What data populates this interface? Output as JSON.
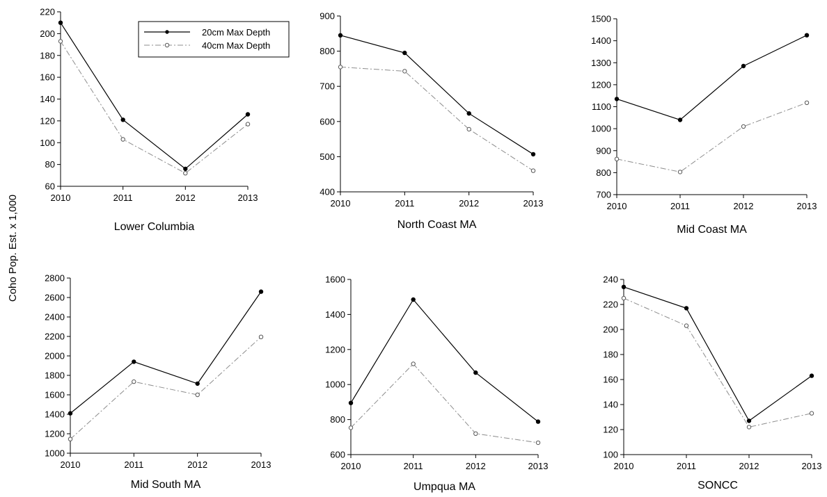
{
  "figure": {
    "ylabel": "Coho Pop. Est. x 1,000"
  },
  "legend": {
    "entries": [
      "20cm Max Depth",
      "40cm Max Depth"
    ]
  },
  "chart_data": [
    {
      "type": "line",
      "title": "Lower Columbia",
      "x": [
        2010,
        2011,
        2012,
        2013
      ],
      "ylim": [
        60,
        220
      ],
      "yticks": [
        60,
        80,
        100,
        120,
        140,
        160,
        180,
        200,
        220
      ],
      "series": [
        {
          "name": "20cm Max Depth",
          "values": [
            210,
            121,
            76,
            126
          ]
        },
        {
          "name": "40cm Max Depth",
          "values": [
            193,
            103,
            72,
            117
          ]
        }
      ]
    },
    {
      "type": "line",
      "title": "North Coast MA",
      "x": [
        2010,
        2011,
        2012,
        2013
      ],
      "ylim": [
        400,
        900
      ],
      "yticks": [
        400,
        500,
        600,
        700,
        800,
        900
      ],
      "series": [
        {
          "name": "20cm Max Depth",
          "values": [
            845,
            795,
            623,
            507
          ]
        },
        {
          "name": "40cm Max Depth",
          "values": [
            755,
            743,
            578,
            460
          ]
        }
      ]
    },
    {
      "type": "line",
      "title": "Mid Coast MA",
      "x": [
        2010,
        2011,
        2012,
        2013
      ],
      "ylim": [
        700,
        1500
      ],
      "yticks": [
        700,
        800,
        900,
        1000,
        1100,
        1200,
        1300,
        1400,
        1500
      ],
      "series": [
        {
          "name": "20cm Max Depth",
          "values": [
            1135,
            1040,
            1285,
            1425
          ]
        },
        {
          "name": "40cm Max Depth",
          "values": [
            862,
            803,
            1010,
            1118
          ]
        }
      ]
    },
    {
      "type": "line",
      "title": "Mid South MA",
      "x": [
        2010,
        2011,
        2012,
        2013
      ],
      "ylim": [
        1000,
        2800
      ],
      "yticks": [
        1000,
        1200,
        1400,
        1600,
        1800,
        2000,
        2200,
        2400,
        2600,
        2800
      ],
      "series": [
        {
          "name": "20cm Max Depth",
          "values": [
            1410,
            1940,
            1715,
            2660
          ]
        },
        {
          "name": "40cm Max Depth",
          "values": [
            1145,
            1735,
            1600,
            2195
          ]
        }
      ]
    },
    {
      "type": "line",
      "title": "Umpqua MA",
      "x": [
        2010,
        2011,
        2012,
        2013
      ],
      "ylim": [
        600,
        1600
      ],
      "yticks": [
        600,
        800,
        1000,
        1200,
        1400,
        1600
      ],
      "series": [
        {
          "name": "20cm Max Depth",
          "values": [
            895,
            1485,
            1068,
            788
          ]
        },
        {
          "name": "40cm Max Depth",
          "values": [
            753,
            1118,
            720,
            668
          ]
        }
      ]
    },
    {
      "type": "line",
      "title": "SONCC",
      "x": [
        2010,
        2011,
        2012,
        2013
      ],
      "ylim": [
        100,
        240
      ],
      "yticks": [
        100,
        120,
        140,
        160,
        180,
        200,
        220,
        240
      ],
      "series": [
        {
          "name": "20cm Max Depth",
          "values": [
            234,
            217,
            127,
            163
          ]
        },
        {
          "name": "40cm Max Depth",
          "values": [
            225,
            203,
            122,
            133
          ]
        }
      ]
    }
  ]
}
